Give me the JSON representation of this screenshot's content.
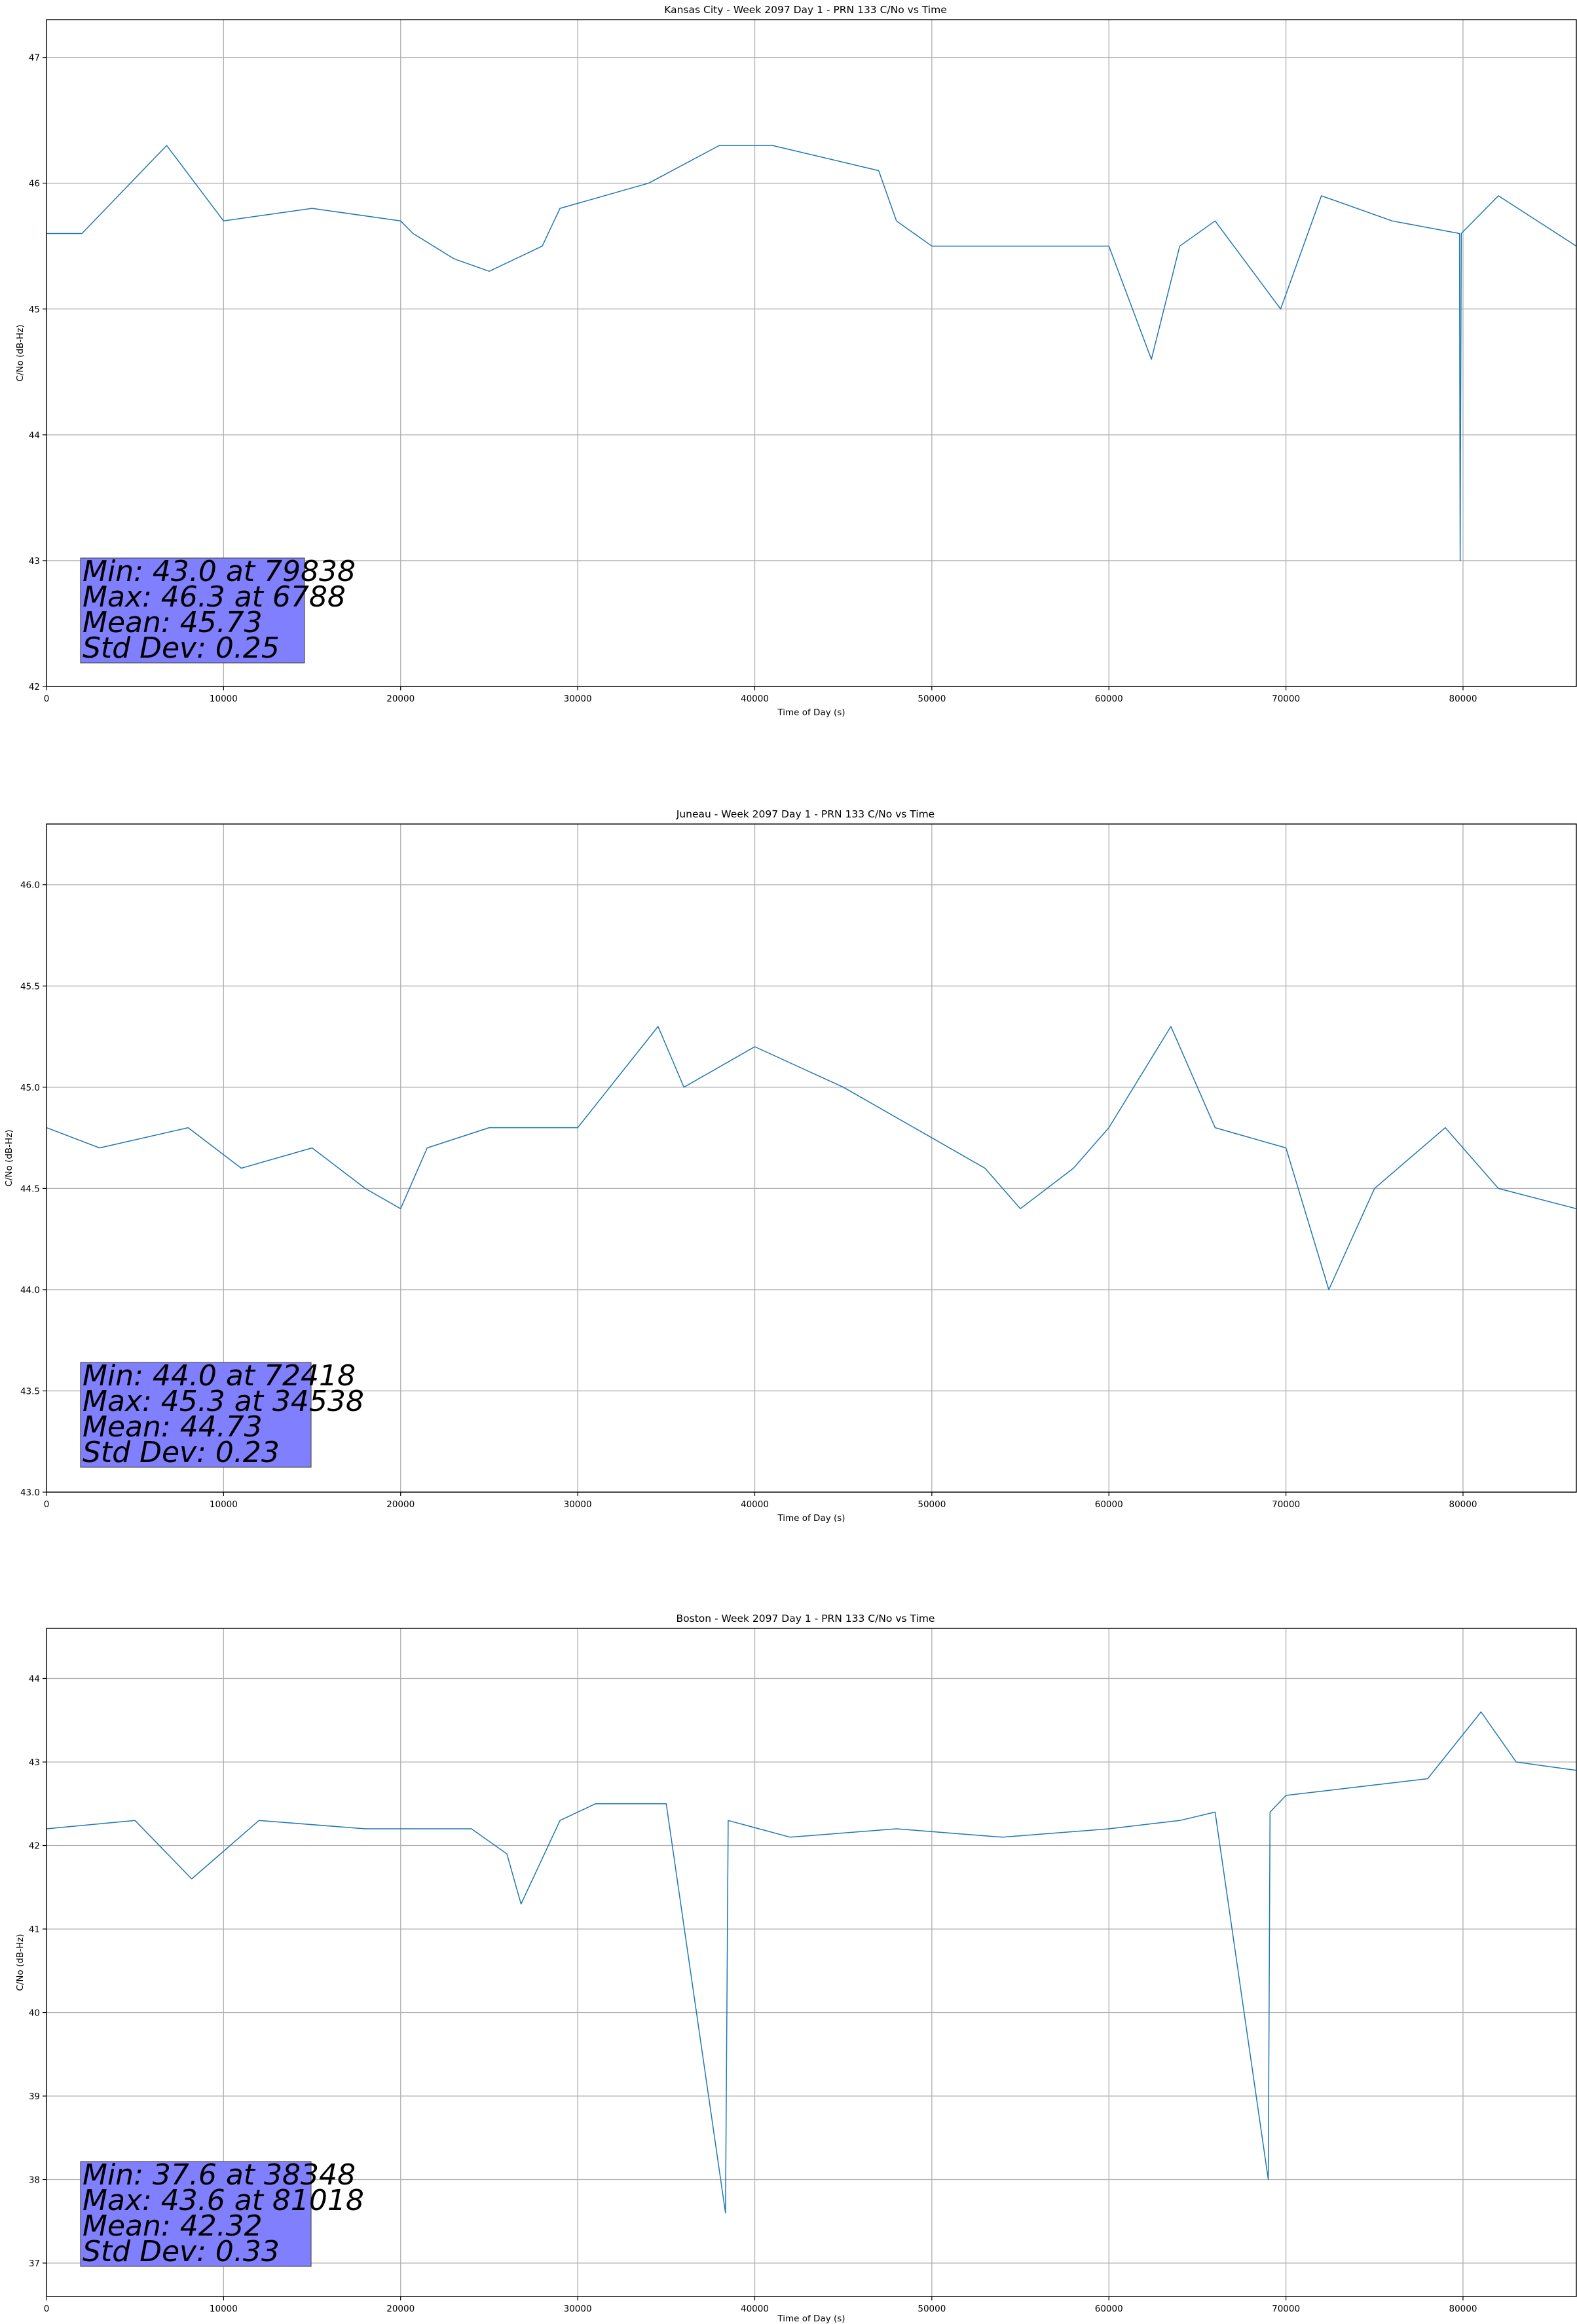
{
  "figure": {
    "background": "#ffffff",
    "line_color": "#1f77b4",
    "stats_box_color": "#8080ff"
  },
  "chart_data": [
    {
      "type": "line",
      "title": "Kansas City - Week 2097 Day 1 - PRN 133 C/No vs Time",
      "xlabel": "Time of Day (s)",
      "ylabel": "C/No (dB-Hz)",
      "xlim": [
        0,
        86400
      ],
      "ylim": [
        42,
        47.3
      ],
      "xticks": [
        0,
        10000,
        20000,
        30000,
        40000,
        50000,
        60000,
        70000,
        80000
      ],
      "yticks": [
        42,
        43,
        44,
        45,
        46,
        47
      ],
      "grid": true,
      "series": [
        {
          "x": [
            0,
            2000,
            6788,
            10000,
            15000,
            20000,
            20700,
            23000,
            25000,
            28000,
            29000,
            34000,
            38000,
            41000,
            47000,
            48000,
            50000,
            55000,
            60000,
            62400,
            64000,
            66000,
            69700,
            72000,
            76000,
            79800,
            79838,
            79900,
            82000,
            86400
          ],
          "y": [
            45.6,
            45.6,
            46.3,
            45.7,
            45.8,
            45.7,
            45.6,
            45.4,
            45.3,
            45.5,
            45.8,
            46.0,
            46.3,
            46.3,
            46.1,
            45.7,
            45.5,
            45.5,
            45.5,
            44.6,
            45.5,
            45.7,
            45.0,
            45.9,
            45.7,
            45.6,
            43.0,
            45.6,
            45.9,
            45.5
          ]
        }
      ],
      "stats": [
        "Min: 43.0 at 79838",
        "Max: 46.3 at 6788",
        "Mean: 45.73",
        "Std Dev: 0.25"
      ]
    },
    {
      "type": "line",
      "title": "Juneau - Week 2097 Day 1 - PRN 133 C/No vs Time",
      "xlabel": "Time of Day (s)",
      "ylabel": "C/No (dB-Hz)",
      "xlim": [
        0,
        86400
      ],
      "ylim": [
        43.0,
        46.3
      ],
      "xticks": [
        0,
        10000,
        20000,
        30000,
        40000,
        50000,
        60000,
        70000,
        80000
      ],
      "yticks": [
        43.0,
        43.5,
        44.0,
        44.5,
        45.0,
        45.5,
        46.0
      ],
      "grid": true,
      "series": [
        {
          "x": [
            0,
            3000,
            8000,
            11000,
            15000,
            18000,
            20000,
            21500,
            25000,
            30000,
            34538,
            36000,
            40000,
            45000,
            49000,
            53000,
            55000,
            58000,
            60000,
            63500,
            66000,
            70000,
            72418,
            75000,
            79000,
            82000,
            86400
          ],
          "y": [
            44.8,
            44.7,
            44.8,
            44.6,
            44.7,
            44.5,
            44.4,
            44.7,
            44.8,
            44.8,
            45.3,
            45.0,
            45.2,
            45.0,
            44.8,
            44.6,
            44.4,
            44.6,
            44.8,
            45.3,
            44.8,
            44.7,
            44.0,
            44.5,
            44.8,
            44.5,
            44.4
          ]
        }
      ],
      "stats": [
        "Min: 44.0 at 72418",
        "Max: 45.3 at 34538",
        "Mean: 44.73",
        "Std Dev: 0.23"
      ]
    },
    {
      "type": "line",
      "title": "Boston - Week 2097 Day 1 - PRN 133 C/No vs Time",
      "xlabel": "Time of Day (s)",
      "ylabel": "C/No (dB-Hz)",
      "xlim": [
        0,
        86400
      ],
      "ylim": [
        36.6,
        44.6
      ],
      "xticks": [
        0,
        10000,
        20000,
        30000,
        40000,
        50000,
        60000,
        70000,
        80000
      ],
      "yticks": [
        37,
        38,
        39,
        40,
        41,
        42,
        43,
        44
      ],
      "grid": true,
      "series": [
        {
          "x": [
            0,
            5000,
            8200,
            12000,
            18000,
            24000,
            26000,
            26800,
            29000,
            31000,
            35000,
            38348,
            38500,
            42000,
            48000,
            54000,
            60000,
            64000,
            66000,
            69000,
            69100,
            70000,
            74000,
            78000,
            81018,
            83000,
            86400
          ],
          "y": [
            42.2,
            42.3,
            41.6,
            42.3,
            42.2,
            42.2,
            41.9,
            41.3,
            42.3,
            42.5,
            42.5,
            37.6,
            42.3,
            42.1,
            42.2,
            42.1,
            42.2,
            42.3,
            42.4,
            38.0,
            42.4,
            42.6,
            42.7,
            42.8,
            43.6,
            43.0,
            42.9
          ]
        }
      ],
      "stats": [
        "Min: 37.6 at 38348",
        "Max: 43.6 at 81018",
        "Mean: 42.32",
        "Std Dev: 0.33"
      ]
    }
  ]
}
